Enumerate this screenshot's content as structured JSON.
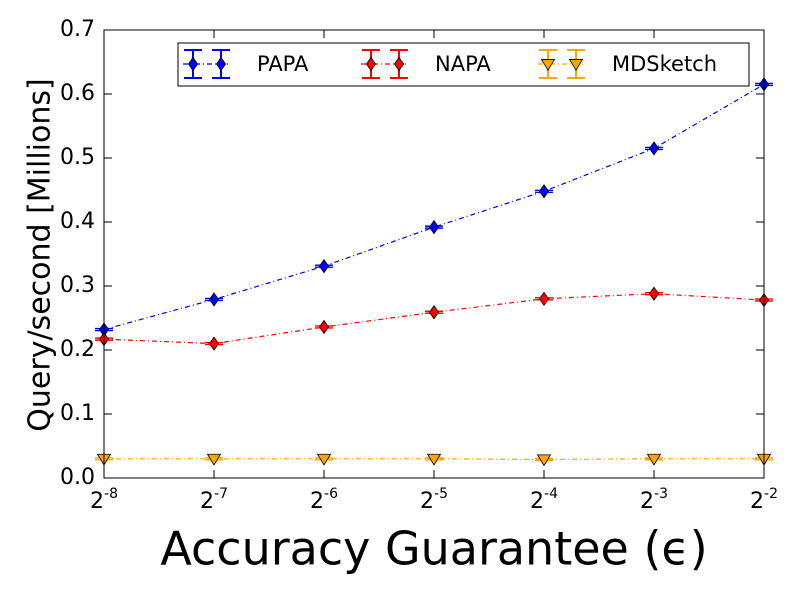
{
  "chart_data": {
    "type": "line",
    "xlabel": "Accuracy Guarantee (ϵ)",
    "ylabel": "Query/second [Millions]",
    "x_scale": "log2",
    "x": [
      -8,
      -7,
      -6,
      -5,
      -4,
      -3,
      -2
    ],
    "x_tick_labels": [
      {
        "base": "2",
        "exp": "-8"
      },
      {
        "base": "2",
        "exp": "-7"
      },
      {
        "base": "2",
        "exp": "-6"
      },
      {
        "base": "2",
        "exp": "-5"
      },
      {
        "base": "2",
        "exp": "-4"
      },
      {
        "base": "2",
        "exp": "-3"
      },
      {
        "base": "2",
        "exp": "-2"
      }
    ],
    "y_ticks": [
      0.0,
      0.1,
      0.2,
      0.3,
      0.4,
      0.5,
      0.6,
      0.7
    ],
    "y_tick_labels": [
      "0.0",
      "0.1",
      "0.2",
      "0.3",
      "0.4",
      "0.5",
      "0.6",
      "0.7"
    ],
    "xlim": [
      -8,
      -2
    ],
    "ylim": [
      0,
      0.7
    ],
    "grid": false,
    "legend_position": "top-right",
    "series": [
      {
        "name": "PAPA",
        "color": "#0000ff",
        "marker": "diamond",
        "linestyle": "dash-dot",
        "values": [
          0.232,
          0.279,
          0.331,
          0.392,
          0.448,
          0.515,
          0.615
        ]
      },
      {
        "name": "NAPA",
        "color": "#ff0000",
        "marker": "diamond",
        "linestyle": "dash-dot",
        "values": [
          0.217,
          0.21,
          0.236,
          0.259,
          0.28,
          0.288,
          0.278
        ]
      },
      {
        "name": "MDSketch",
        "color": "#ffa500",
        "marker": "triangle-down",
        "linestyle": "dash-dot",
        "values": [
          0.03,
          0.03,
          0.03,
          0.03,
          0.029,
          0.03,
          0.03
        ]
      }
    ]
  }
}
